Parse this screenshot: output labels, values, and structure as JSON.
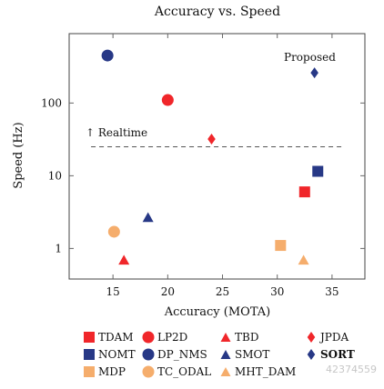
{
  "colors": {
    "red": "#f0262a",
    "navy": "#273886",
    "orange": "#f5ad6c",
    "axis": "#444444",
    "tick": "#666666",
    "dashed": "#555555"
  },
  "chart_data": {
    "type": "scatter",
    "title": "Accuracy vs. Speed",
    "xlabel": "Accuracy (MOTA)",
    "ylabel": "Speed (Hz)",
    "xlim": [
      11,
      38
    ],
    "ylim": [
      0.38,
      900
    ],
    "yscale": "log",
    "xticks": [
      15,
      20,
      25,
      30,
      35
    ],
    "yticks": [
      1,
      10,
      100
    ],
    "grid": false,
    "legend_position": "bottom",
    "annotations": [
      {
        "label": "Proposed"
      },
      {
        "label": "↑ Realtime"
      }
    ],
    "realtime_line": {
      "y": 25,
      "x_start": 13,
      "x_end": 36
    },
    "series": [
      {
        "name": "TDAM",
        "marker": "square",
        "color": "red",
        "points": [
          {
            "x": 32.5,
            "y": 6
          }
        ]
      },
      {
        "name": "LP2D",
        "marker": "circle",
        "color": "red",
        "points": [
          {
            "x": 20,
            "y": 110
          }
        ]
      },
      {
        "name": "TBD",
        "marker": "triangle",
        "color": "red",
        "points": [
          {
            "x": 16,
            "y": 0.7
          }
        ]
      },
      {
        "name": "JPDA",
        "marker": "diamond",
        "color": "red",
        "points": [
          {
            "x": 24,
            "y": 32
          }
        ]
      },
      {
        "name": "NOMT",
        "marker": "square",
        "color": "navy",
        "points": [
          {
            "x": 33.7,
            "y": 11.5
          }
        ]
      },
      {
        "name": "DP_NMS",
        "marker": "circle",
        "color": "navy",
        "points": [
          {
            "x": 14.5,
            "y": 450
          }
        ]
      },
      {
        "name": "SMOT",
        "marker": "triangle",
        "color": "navy",
        "points": [
          {
            "x": 18.2,
            "y": 2.7
          }
        ]
      },
      {
        "name": "SORT",
        "marker": "diamond",
        "color": "navy",
        "bold": true,
        "points": [
          {
            "x": 33.4,
            "y": 260
          }
        ]
      },
      {
        "name": "MDP",
        "marker": "square",
        "color": "orange",
        "points": [
          {
            "x": 30.3,
            "y": 1.1
          }
        ]
      },
      {
        "name": "TC_ODAL",
        "marker": "circle",
        "color": "orange",
        "points": [
          {
            "x": 15.1,
            "y": 1.7
          }
        ]
      },
      {
        "name": "MHT_DAM",
        "marker": "triangle",
        "color": "orange",
        "points": [
          {
            "x": 32.4,
            "y": 0.7
          }
        ]
      }
    ]
  },
  "legend": {
    "items": [
      {
        "label": "TDAM",
        "marker": "square",
        "color": "red"
      },
      {
        "label": "LP2D",
        "marker": "circle",
        "color": "red"
      },
      {
        "label": "TBD",
        "marker": "triangle",
        "color": "red"
      },
      {
        "label": "JPDA",
        "marker": "diamond",
        "color": "red"
      },
      {
        "label": "NOMT",
        "marker": "square",
        "color": "navy"
      },
      {
        "label": "DP_NMS",
        "marker": "circle",
        "color": "navy"
      },
      {
        "label": "SMOT",
        "marker": "triangle",
        "color": "navy"
      },
      {
        "label": "SORT",
        "marker": "diamond",
        "color": "navy",
        "bold": true
      },
      {
        "label": "MDP",
        "marker": "square",
        "color": "orange"
      },
      {
        "label": "TC_ODAL",
        "marker": "circle",
        "color": "orange"
      },
      {
        "label": "MHT_DAM",
        "marker": "triangle",
        "color": "orange"
      }
    ]
  },
  "watermark": "42374559"
}
